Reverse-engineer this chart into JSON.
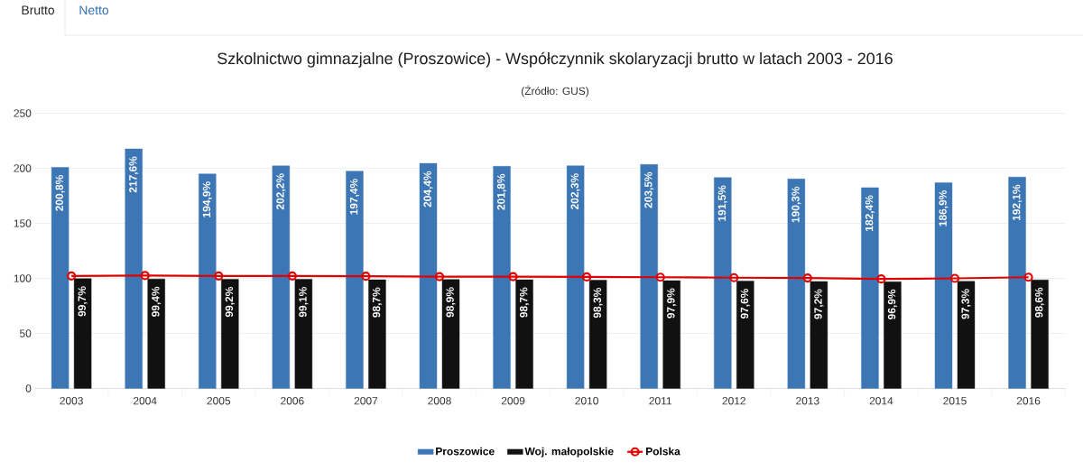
{
  "chart_data": {
    "type": "bar",
    "title": "Szkolnictwo gimnazjalne (Proszowice) - Współczynnik skolaryzacji brutto w latach 2003 - 2016",
    "subtitle": "(Źródło: GUS)",
    "annotations": [
      "Brutto",
      "Netto"
    ],
    "categories": [
      "2003",
      "2004",
      "2005",
      "2006",
      "2007",
      "2008",
      "2009",
      "2010",
      "2011",
      "2012",
      "2013",
      "2014",
      "2015",
      "2016"
    ],
    "series": [
      {
        "name": "Proszowice",
        "color": "#3d76b5",
        "values": [
          200.8,
          217.6,
          194.9,
          202.2,
          197.4,
          204.4,
          201.8,
          202.3,
          203.5,
          191.5,
          190.3,
          182.4,
          186.9,
          192.1
        ],
        "value_labels": [
          "200,8%",
          "217,6%",
          "194,9%",
          "202,2%",
          "197,4%",
          "204,4%",
          "201,8%",
          "202,3%",
          "203,5%",
          "191,5%",
          "190,3%",
          "182,4%",
          "186,9%",
          "192,1%"
        ]
      },
      {
        "name": "Woj. małopolskie",
        "color": "#111111",
        "values": [
          99.7,
          99.4,
          99.2,
          99.1,
          98.7,
          98.9,
          98.7,
          98.3,
          97.9,
          97.6,
          97.2,
          96.9,
          97.3,
          98.6
        ],
        "value_labels": [
          "99,7%",
          "99,4%",
          "99,2%",
          "99,1%",
          "98,7%",
          "98,9%",
          "98,7%",
          "98,3%",
          "97,9%",
          "97,6%",
          "97,2%",
          "96,9%",
          "97,3%",
          "98,6%"
        ]
      },
      {
        "name": "Polska",
        "type": "line",
        "color": "#e00000",
        "marker": "circle",
        "line_style": "solid",
        "values": [
          102.2,
          102.5,
          102.2,
          102.2,
          101.9,
          101.6,
          101.6,
          101.3,
          101.0,
          100.6,
          100.3,
          99.4,
          100.0,
          101.0
        ]
      }
    ],
    "ylim": [
      0,
      250
    ],
    "yticks": [
      0,
      50,
      100,
      150,
      200,
      250
    ],
    "grid": "y",
    "legend": "bottom"
  }
}
